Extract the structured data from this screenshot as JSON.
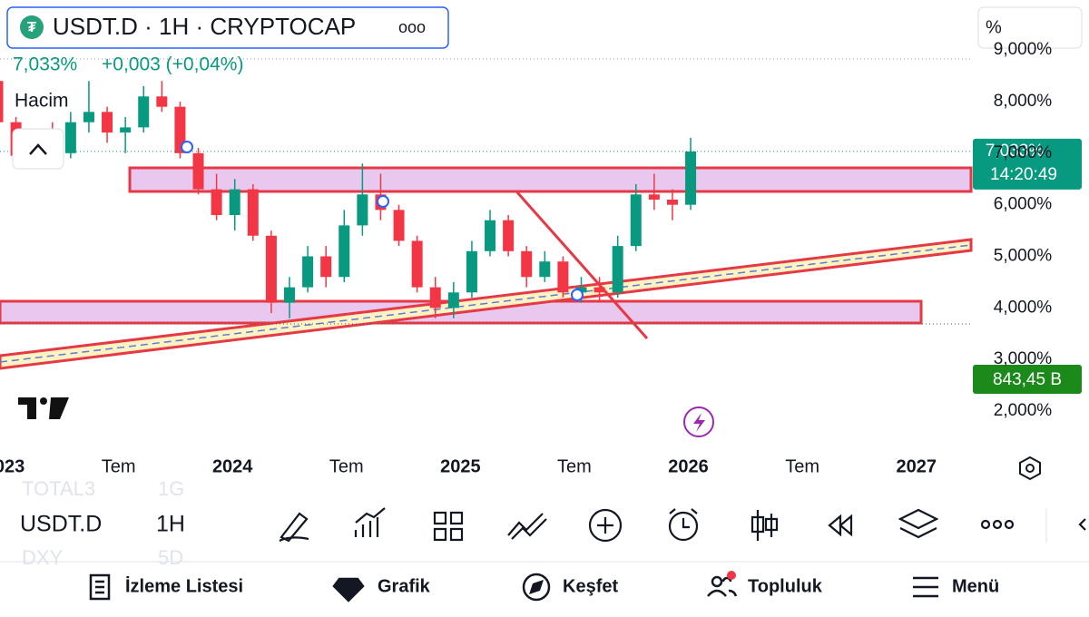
{
  "header": {
    "symbol": "USDT.D · 1H · CRYPTOCAP",
    "more": "ooo",
    "unit": "%",
    "quote": "7,033%",
    "change": "+0,003 (+0,04%)",
    "volume_label": "Hacim",
    "price_badge": "7,033%",
    "countdown": "14:20:49",
    "volume_badge": "843,45 B"
  },
  "chart_data": {
    "type": "candlestick",
    "x": [
      2022.97,
      2023.05,
      2023.13,
      2023.21,
      2023.29,
      2023.37,
      2023.45,
      2023.53,
      2023.61,
      2023.69,
      2023.77,
      2023.85,
      2023.93,
      2024.01,
      2024.09,
      2024.17,
      2024.25,
      2024.33,
      2024.41,
      2024.49,
      2024.57,
      2024.65,
      2024.73,
      2024.81,
      2024.89,
      2024.97,
      2025.05,
      2025.13,
      2025.21,
      2025.29,
      2025.37,
      2025.45,
      2025.53,
      2025.61,
      2025.69,
      2025.77,
      2025.85,
      2025.93,
      2026.01
    ],
    "open": [
      8.4,
      7.6,
      6.95,
      7.2,
      7.0,
      7.6,
      7.8,
      7.4,
      7.5,
      8.1,
      7.9,
      7.0,
      6.3,
      5.8,
      6.3,
      5.4,
      4.1,
      4.4,
      5.0,
      4.6,
      5.6,
      6.2,
      5.9,
      5.3,
      4.4,
      4.0,
      4.3,
      5.1,
      5.7,
      5.1,
      4.6,
      4.9,
      4.3,
      4.4,
      4.3,
      5.2,
      6.2,
      6.1,
      6.0
    ],
    "high": [
      8.6,
      7.7,
      7.3,
      7.6,
      7.8,
      8.4,
      7.9,
      7.7,
      8.3,
      8.4,
      8.0,
      7.1,
      6.6,
      6.5,
      6.4,
      5.5,
      4.6,
      5.2,
      5.2,
      5.9,
      6.8,
      6.6,
      6.0,
      5.4,
      4.6,
      4.5,
      5.3,
      5.9,
      5.8,
      5.2,
      5.1,
      5.0,
      4.6,
      4.6,
      5.4,
      6.4,
      6.6,
      6.3,
      7.3
    ],
    "low": [
      7.4,
      6.8,
      6.7,
      6.9,
      6.9,
      7.4,
      7.2,
      7.0,
      7.4,
      7.8,
      6.9,
      6.2,
      5.7,
      5.5,
      5.3,
      3.9,
      3.8,
      4.3,
      4.4,
      4.5,
      5.4,
      5.7,
      5.2,
      4.3,
      3.8,
      3.8,
      4.2,
      5.0,
      5.0,
      4.4,
      4.5,
      4.2,
      4.1,
      4.1,
      4.2,
      5.1,
      5.9,
      5.7,
      5.9
    ],
    "close": [
      7.6,
      6.95,
      7.2,
      7.0,
      7.6,
      7.8,
      7.4,
      7.5,
      8.1,
      7.9,
      7.0,
      6.3,
      5.8,
      6.3,
      5.4,
      4.1,
      4.4,
      5.0,
      4.6,
      5.6,
      6.2,
      5.9,
      5.3,
      4.4,
      4.0,
      4.3,
      5.1,
      5.7,
      5.1,
      4.6,
      4.9,
      4.3,
      4.4,
      4.3,
      5.2,
      6.2,
      6.1,
      6.0,
      7.033
    ],
    "up_color": "#089981",
    "down_color": "#f23645",
    "xlim": [
      2022.98,
      2027.24
    ],
    "xticks": [
      {
        "value": 2023,
        "label": "2023"
      },
      {
        "value": 2023.5,
        "label": "Tem"
      },
      {
        "value": 2024,
        "label": "2024"
      },
      {
        "value": 2024.5,
        "label": "Tem"
      },
      {
        "value": 2025,
        "label": "2025"
      },
      {
        "value": 2025.5,
        "label": "Tem"
      },
      {
        "value": 2026,
        "label": "2026"
      },
      {
        "value": 2026.5,
        "label": "Tem"
      },
      {
        "value": 2027,
        "label": "2027"
      }
    ],
    "ylim": [
      1.35,
      9.09
    ],
    "yticks": [
      {
        "value": 2,
        "label": "2,000%"
      },
      {
        "value": 3,
        "label": "3,000%"
      },
      {
        "value": 4,
        "label": "4,000%"
      },
      {
        "value": 5,
        "label": "5,000%"
      },
      {
        "value": 6,
        "label": "6,000%"
      },
      {
        "value": 7,
        "label": "7,000%"
      },
      {
        "value": 8,
        "label": "8,000%"
      },
      {
        "value": 9,
        "label": "9,000%"
      }
    ]
  },
  "toolbar": {
    "symbol": "USDT.D",
    "interval": "1H",
    "ghost_symbol_top": "TOTAL3",
    "ghost_interval_top": "1G",
    "ghost_symbol_bottom": "DXY",
    "ghost_interval_bottom": "5D"
  },
  "nav": {
    "watchlist": "İzleme Listesi",
    "chart": "Grafik",
    "explore": "Keşfet",
    "community": "Topluluk",
    "menu": "Menü"
  }
}
